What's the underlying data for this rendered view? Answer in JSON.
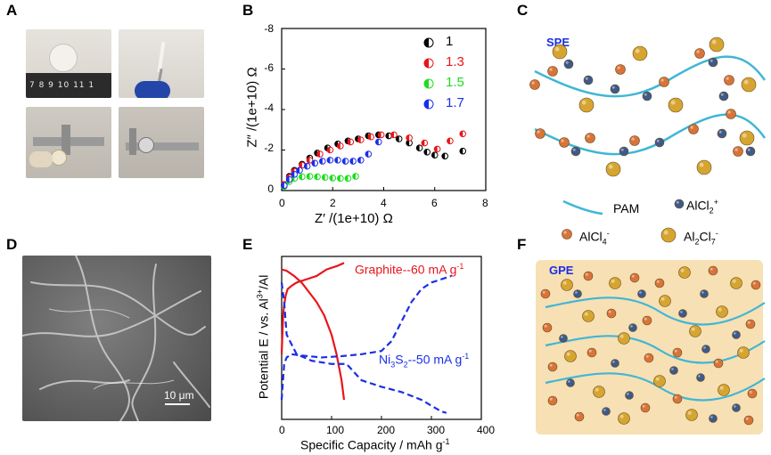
{
  "panels": {
    "A": {
      "label": "A",
      "ruler_text": "7 8 9 10 11 1"
    },
    "B": {
      "label": "B"
    },
    "C": {
      "label": "C"
    },
    "D": {
      "label": "D",
      "scale_bar": "10 μm"
    },
    "E": {
      "label": "E"
    },
    "F": {
      "label": "F"
    }
  },
  "schematic_c": {
    "title": "SPE",
    "legend": {
      "pam": "PAM",
      "alcl2_base": "AlCl",
      "alcl2_sub": "2",
      "alcl2_sup": "+",
      "alcl4_base": "AlCl",
      "alcl4_sub": "4",
      "alcl4_sup": "-",
      "al2cl7_a": "Al",
      "al2cl7_sub1": "2",
      "al2cl7_b": "Cl",
      "al2cl7_sub2": "7",
      "al2cl7_sup": "-"
    },
    "colors": {
      "chain": "#3fb6d6",
      "orange": "#d8743a",
      "blue": "#3d5a8a",
      "gold": "#d6a530"
    }
  },
  "schematic_f": {
    "title": "GPE",
    "colors": {
      "gel": "#f6dcaa"
    }
  },
  "chart_data": [
    {
      "type": "scatter",
      "panel": "B",
      "xlabel": "Z′ /(1e+10) Ω",
      "ylabel": "Z″ /(1e+10) Ω",
      "xlim": [
        0,
        8
      ],
      "ylim": [
        0,
        -8
      ],
      "xticks": [
        "0",
        "2",
        "4",
        "6",
        "8"
      ],
      "yticks": [
        "-8",
        "-6",
        "-4",
        "-2",
        "0"
      ],
      "series": [
        {
          "name": "1",
          "color": "#000000",
          "x": [
            0.1,
            0.3,
            0.5,
            0.8,
            1.1,
            1.4,
            1.8,
            2.2,
            2.6,
            3.0,
            3.4,
            3.8,
            4.2,
            4.6,
            5.0,
            5.4,
            5.7,
            6.0,
            6.4,
            7.1
          ],
          "y": [
            -0.3,
            -0.7,
            -1.0,
            -1.3,
            -1.6,
            -1.85,
            -2.1,
            -2.3,
            -2.45,
            -2.55,
            -2.7,
            -2.75,
            -2.7,
            -2.55,
            -2.35,
            -2.1,
            -1.9,
            -1.75,
            -1.7,
            -1.95
          ]
        },
        {
          "name": "1.3",
          "color": "#e8151b",
          "x": [
            0.1,
            0.3,
            0.5,
            0.8,
            1.1,
            1.5,
            1.9,
            2.3,
            2.7,
            3.1,
            3.5,
            3.9,
            4.4,
            5.0,
            5.6,
            6.1,
            6.6,
            7.1
          ],
          "y": [
            -0.3,
            -0.65,
            -0.95,
            -1.25,
            -1.5,
            -1.8,
            -2.0,
            -2.2,
            -2.4,
            -2.5,
            -2.65,
            -2.75,
            -2.75,
            -2.6,
            -2.35,
            -2.05,
            -2.45,
            -2.8
          ]
        },
        {
          "name": "1.5",
          "color": "#1edc1e",
          "x": [
            0.1,
            0.3,
            0.5,
            0.8,
            1.1,
            1.4,
            1.7,
            2.0,
            2.3,
            2.6,
            2.9
          ],
          "y": [
            -0.2,
            -0.45,
            -0.6,
            -0.68,
            -0.7,
            -0.68,
            -0.65,
            -0.62,
            -0.6,
            -0.6,
            -0.7
          ]
        },
        {
          "name": "1.7",
          "color": "#1a2ee8",
          "x": [
            0.1,
            0.3,
            0.5,
            0.7,
            1.0,
            1.3,
            1.6,
            1.9,
            2.2,
            2.5,
            2.8,
            3.1,
            3.4,
            3.8
          ],
          "y": [
            -0.25,
            -0.55,
            -0.8,
            -1.0,
            -1.2,
            -1.35,
            -1.45,
            -1.5,
            -1.5,
            -1.45,
            -1.45,
            -1.5,
            -1.8,
            -2.4
          ]
        }
      ]
    },
    {
      "type": "line",
      "panel": "E",
      "xlabel": "Specific Capacity / mAh g",
      "xlabel_sup": "-1",
      "ylabel": "Potential E / vs. Al",
      "ylabel_sup": "3+",
      "ylabel_tail": "/Al",
      "xlim": [
        0,
        400
      ],
      "ylim": [
        0,
        2.5
      ],
      "xticks": [
        "0",
        "100",
        "200",
        "300",
        "400"
      ],
      "series": [
        {
          "name": "Graphite--60 mA g",
          "sup": "-1",
          "color": "#e8151b",
          "dash": false,
          "x": [
            0,
            3,
            5,
            8,
            12,
            20,
            30,
            50,
            70,
            90,
            110,
            125
          ],
          "y": [
            1.0,
            1.6,
            1.75,
            1.9,
            2.0,
            2.05,
            2.1,
            2.15,
            2.2,
            2.3,
            2.35,
            2.4
          ]
        },
        {
          "name": "Graphite-discharge",
          "color": "#e8151b",
          "dash": false,
          "hidden_label": true,
          "x": [
            0,
            10,
            25,
            40,
            55,
            70,
            85,
            100,
            110,
            120,
            125
          ],
          "y": [
            2.3,
            2.28,
            2.2,
            2.1,
            1.95,
            1.8,
            1.6,
            1.3,
            1.0,
            0.6,
            0.3
          ]
        },
        {
          "name": "Ni",
          "sub1": "3",
          "mid": "S",
          "sub2": "2",
          "tail": "--50 mA g",
          "sup": "-1",
          "color": "#1a2ee8",
          "dash": true,
          "x": [
            0,
            5,
            10,
            20,
            40,
            80,
            120,
            160,
            200,
            220,
            240,
            260,
            280,
            300,
            320,
            340
          ],
          "y": [
            0.3,
            0.85,
            0.95,
            1.0,
            0.98,
            0.95,
            0.97,
            1.0,
            1.05,
            1.2,
            1.5,
            1.8,
            2.0,
            2.1,
            2.15,
            2.2
          ]
        },
        {
          "name": "Ni3S2-discharge",
          "color": "#1a2ee8",
          "dash": true,
          "hidden_label": true,
          "x": [
            0,
            5,
            10,
            30,
            60,
            100,
            130,
            160,
            200,
            240,
            280,
            320,
            330
          ],
          "y": [
            2.1,
            1.8,
            1.3,
            1.0,
            0.9,
            0.85,
            0.85,
            0.6,
            0.5,
            0.42,
            0.3,
            0.12,
            0.1
          ]
        }
      ]
    }
  ]
}
